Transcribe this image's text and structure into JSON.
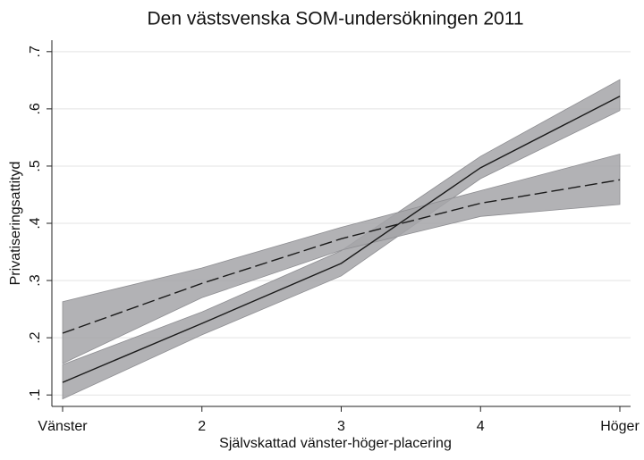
{
  "chart_data": {
    "type": "line",
    "title": "Den västsvenska SOM-undersökningen 2011",
    "xlabel": "Självskattad vänster-höger-placering",
    "ylabel": "Privatiseringsattityd",
    "x": [
      1,
      2,
      3,
      4,
      5
    ],
    "xlim": [
      1,
      5
    ],
    "xticks": [
      {
        "value": 1,
        "label": "Vänster"
      },
      2,
      3,
      4,
      {
        "value": 5,
        "label": "Höger"
      }
    ],
    "ylim": [
      0.08,
      0.72
    ],
    "yticks": [
      {
        "value": 0.1,
        "label": ".1"
      },
      {
        "value": 0.2,
        "label": ".2"
      },
      {
        "value": 0.3,
        "label": ".3"
      },
      {
        "value": 0.4,
        "label": ".4"
      },
      {
        "value": 0.5,
        "label": ".5"
      },
      {
        "value": 0.6,
        "label": ".6"
      },
      {
        "value": 0.7,
        "label": ".7"
      }
    ],
    "grid": true,
    "band_color": "#a4a4a8",
    "series": [
      {
        "color": "#1a1a1a",
        "dash": "solid",
        "values": [
          0.122,
          0.225,
          0.33,
          0.497,
          0.622
        ],
        "lower": [
          0.093,
          0.205,
          0.308,
          0.478,
          0.597
        ],
        "upper": [
          0.153,
          0.245,
          0.352,
          0.517,
          0.651
        ]
      },
      {
        "color": "#1a1a1a",
        "dash": "dashed",
        "values": [
          0.208,
          0.295,
          0.373,
          0.435,
          0.476
        ],
        "lower": [
          0.155,
          0.27,
          0.353,
          0.412,
          0.433
        ],
        "upper": [
          0.263,
          0.322,
          0.393,
          0.457,
          0.521
        ]
      }
    ]
  }
}
